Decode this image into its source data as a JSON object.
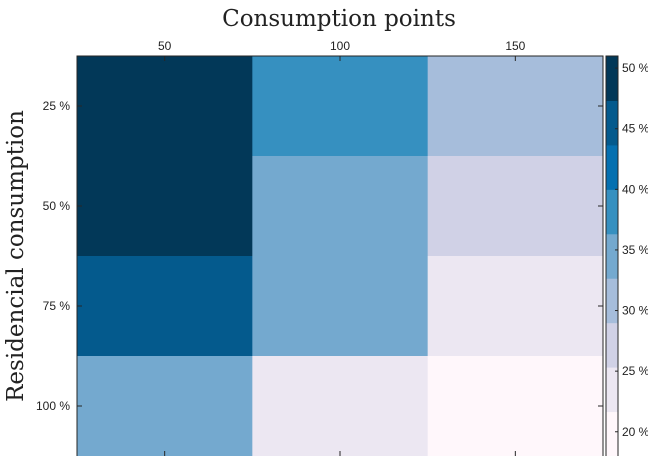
{
  "chart_data": {
    "type": "heatmap",
    "title": "Consumption points",
    "xlabel": "",
    "ylabel": "Residencial consumption",
    "x_categories": [
      "50",
      "100",
      "150"
    ],
    "y_categories": [
      "25 %",
      "50 %",
      "75 %",
      "100 %"
    ],
    "values": [
      [
        50,
        39,
        31
      ],
      [
        50,
        35,
        28
      ],
      [
        45,
        35,
        23
      ],
      [
        35,
        23,
        21
      ]
    ],
    "colorbar": {
      "ticks": [
        20,
        25,
        30,
        35,
        40,
        45,
        50
      ],
      "tick_labels": [
        "20 %",
        "25 %",
        "30 %",
        "35 %",
        "40 %",
        "45 %",
        "50 %"
      ],
      "range": [
        18,
        51
      ],
      "colors": [
        "#fff7fb",
        "#ece7f2",
        "#d0d1e6",
        "#a6bddb",
        "#74a9cf",
        "#3690c0",
        "#0570b0",
        "#045a8d",
        "#023858"
      ]
    },
    "x_axis_position": "top and bottom"
  }
}
